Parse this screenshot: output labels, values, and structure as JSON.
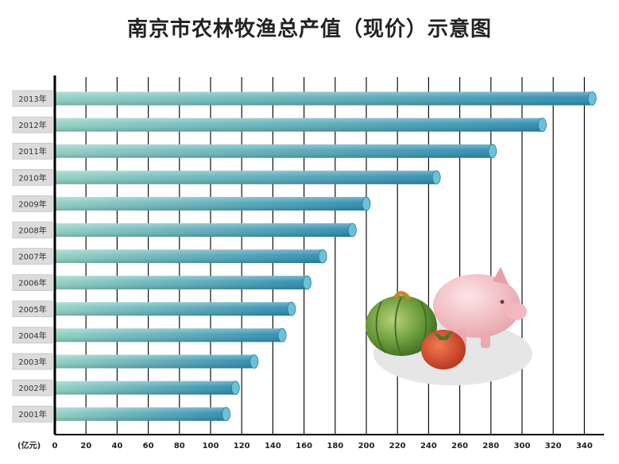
{
  "chart_data": {
    "type": "bar",
    "orientation": "horizontal",
    "title": "南京市农林牧渔总产值（现价）示意图",
    "xlabel": "(亿元)",
    "ylabel": "",
    "categories": [
      "2013年",
      "2012年",
      "2011年",
      "2010年",
      "2009年",
      "2008年",
      "2007年",
      "2006年",
      "2005年",
      "2004年",
      "2003年",
      "2002年",
      "2001年"
    ],
    "values": [
      345,
      313,
      281,
      245,
      200,
      191,
      172,
      162,
      152,
      146,
      128,
      116,
      110
    ],
    "xlim": [
      0,
      350
    ],
    "xticks": [
      0,
      20,
      40,
      60,
      80,
      100,
      120,
      140,
      160,
      180,
      200,
      220,
      240,
      260,
      280,
      300,
      320,
      340
    ],
    "grid": true,
    "colors": {
      "bar_start": "#8fd0c2",
      "bar_end": "#2a8bb0",
      "bar_end_cap": "#6cc1d6",
      "grid": "#111111",
      "axis": "#000000",
      "label_box": "#dcdcdc"
    }
  }
}
